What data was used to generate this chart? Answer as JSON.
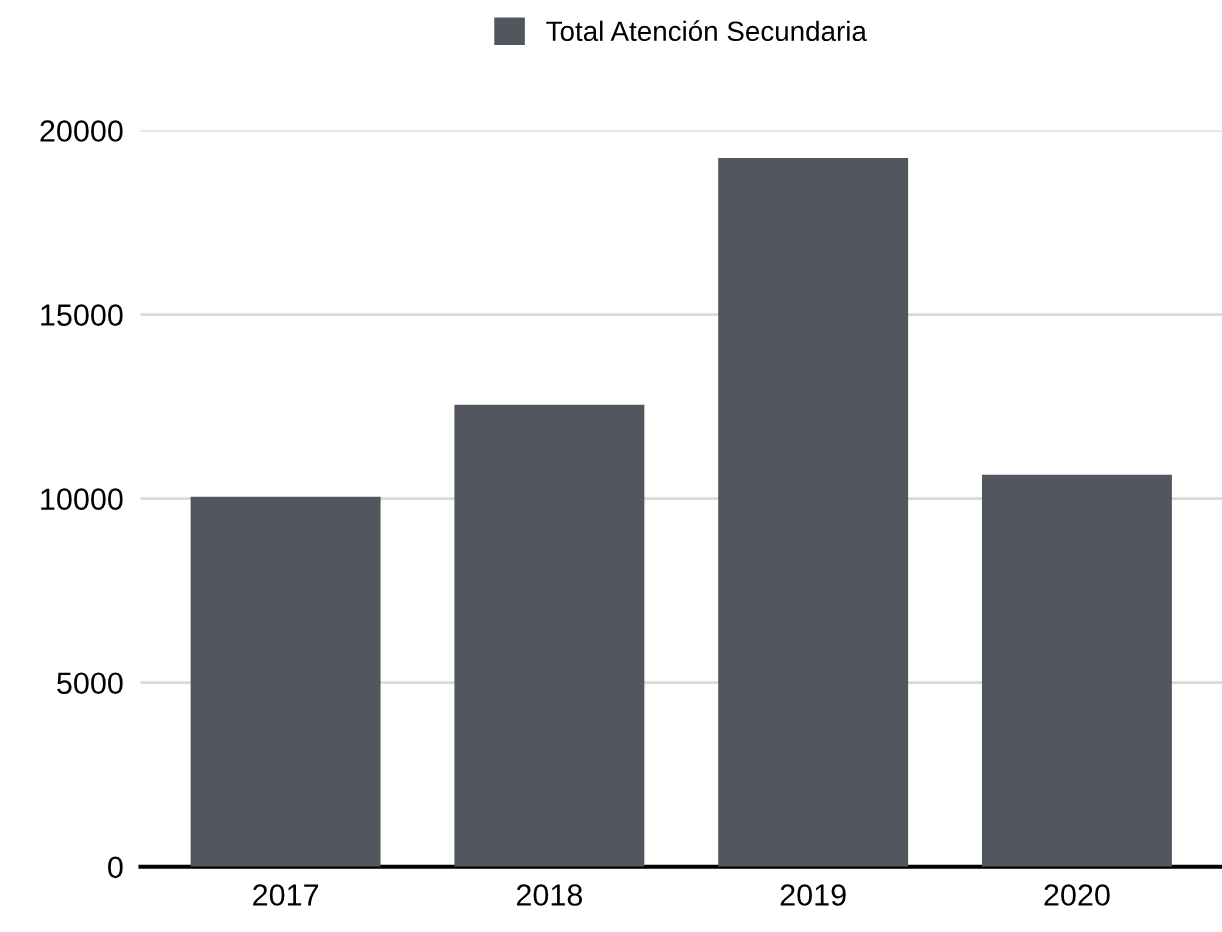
{
  "chart_data": {
    "type": "bar",
    "categories": [
      "2017",
      "2018",
      "2019",
      "2020"
    ],
    "series": [
      {
        "name": "Total Atención Secundaria",
        "color": "#52565e",
        "values": [
          10050,
          12550,
          19250,
          10650
        ]
      }
    ],
    "ylim": [
      0,
      20000
    ],
    "yticks": [
      0,
      5000,
      10000,
      15000,
      20000
    ],
    "grid": "y",
    "legend": "top"
  }
}
